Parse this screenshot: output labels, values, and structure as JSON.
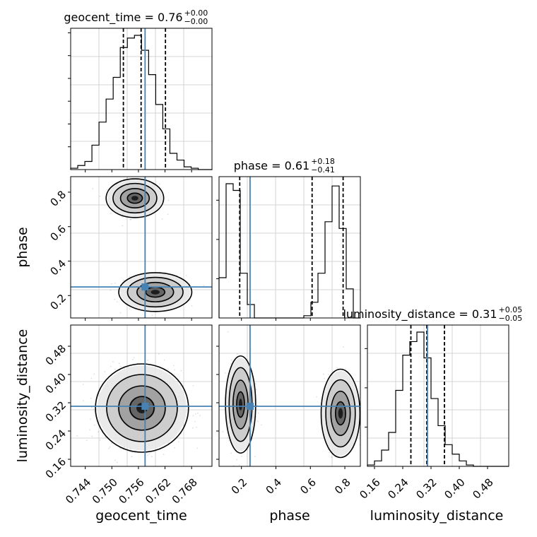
{
  "chart_data": {
    "type": "corner",
    "parameters": [
      "geocent_time",
      "phase",
      "luminosity_distance"
    ],
    "truths": [
      0.7575,
      0.25,
      0.31
    ],
    "truth_color": "#4682b4",
    "ranges": [
      [
        0.7407,
        0.7726
      ],
      [
        0.07,
        0.89
      ],
      [
        0.14,
        0.54
      ]
    ],
    "ticks": [
      [
        "0.744",
        "0.750",
        "0.756",
        "0.762",
        "0.768"
      ],
      [
        "0.2",
        "0.4",
        "0.6",
        "0.8"
      ],
      [
        "0.16",
        "0.24",
        "0.32",
        "0.40",
        "0.48"
      ]
    ],
    "titles": [
      {
        "base": "geocent_time = 0.76",
        "sup": "+0.00",
        "sub": "−0.00"
      },
      {
        "base": "phase = 0.61",
        "sup": "+0.18",
        "sub": "−0.41"
      },
      {
        "base": "luminosity_distance = 0.31",
        "sup": "+0.05",
        "sub": "−0.05"
      }
    ],
    "quantile_lines": [
      [
        0.7526,
        0.7566,
        0.7621
      ],
      [
        0.19,
        0.61,
        0.79
      ],
      [
        0.263,
        0.308,
        0.358
      ]
    ],
    "histograms": [
      {
        "x_edges_start": 0.7407,
        "bin_width": 0.0016,
        "counts": [
          1,
          3,
          6,
          18,
          35,
          52,
          68,
          90,
          97,
          99,
          88,
          70,
          48,
          30,
          12,
          7,
          2,
          1,
          0,
          0
        ]
      },
      {
        "x_edges_start": 0.07,
        "bin_width": 0.041,
        "counts": [
          18,
          60,
          57,
          20,
          6,
          0,
          0,
          0,
          0,
          0,
          0,
          0,
          1,
          7,
          20,
          43,
          59,
          40,
          13,
          0
        ]
      },
      {
        "x_edges_start": 0.14,
        "bin_width": 0.02,
        "counts": [
          1,
          4,
          12,
          25,
          56,
          82,
          92,
          99,
          80,
          50,
          30,
          16,
          9,
          4,
          1,
          0,
          0,
          0,
          0,
          0
        ]
      }
    ],
    "blobs": {
      "geocent_time-phase": [
        {
          "cx": 0.7552,
          "cy": 0.765,
          "sx": 0.0026,
          "sy": 0.045,
          "weight": 0.45
        },
        {
          "cx": 0.7598,
          "cy": 0.22,
          "sx": 0.0033,
          "sy": 0.045,
          "weight": 0.55
        }
      ],
      "geocent_time-luminosity_distance": [
        {
          "cx": 0.7568,
          "cy": 0.305,
          "sx": 0.0042,
          "sy": 0.05,
          "weight": 1.0
        }
      ],
      "phase-luminosity_distance": [
        {
          "cx": 0.195,
          "cy": 0.315,
          "sx": 0.035,
          "sy": 0.055,
          "weight": 0.5
        },
        {
          "cx": 0.775,
          "cy": 0.29,
          "sx": 0.045,
          "sy": 0.05,
          "weight": 0.5
        }
      ]
    },
    "grid": true
  }
}
